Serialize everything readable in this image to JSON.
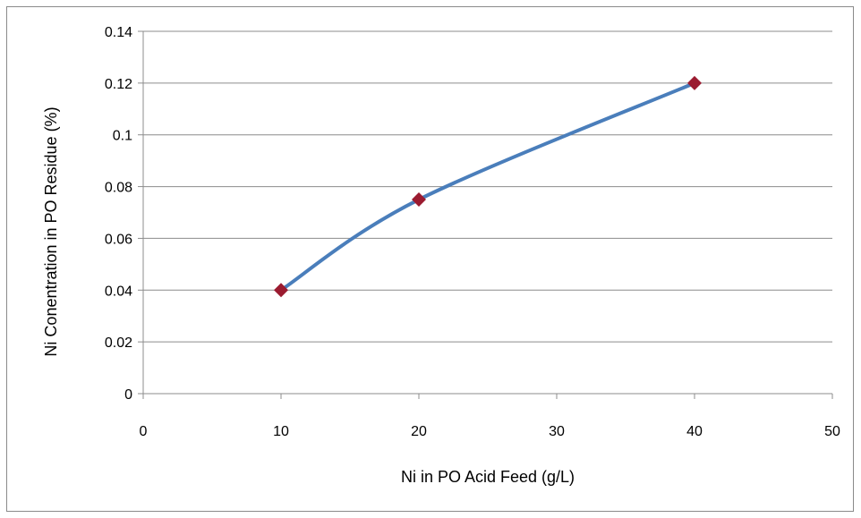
{
  "chart_data": {
    "type": "line",
    "title": "",
    "xlabel": "Ni in PO Acid Feed (g/L)",
    "ylabel": "Ni Conentration  in PO Residue (%)",
    "xlim": [
      0,
      50
    ],
    "ylim": [
      0,
      0.14
    ],
    "x_ticks": [
      "0",
      "10",
      "20",
      "30",
      "40",
      "50"
    ],
    "y_ticks": [
      "0",
      "0.02",
      "0.04",
      "0.06",
      "0.08",
      "0.1",
      "0.12",
      "0.14"
    ],
    "grid": true,
    "legend": "none",
    "series": [
      {
        "x": [
          10,
          20,
          40
        ],
        "y": [
          0.04,
          0.075,
          0.12
        ],
        "line_color": "#4a7ebb",
        "marker_color": "#9b1b30",
        "marker": "diamond",
        "smooth": true
      }
    ]
  }
}
